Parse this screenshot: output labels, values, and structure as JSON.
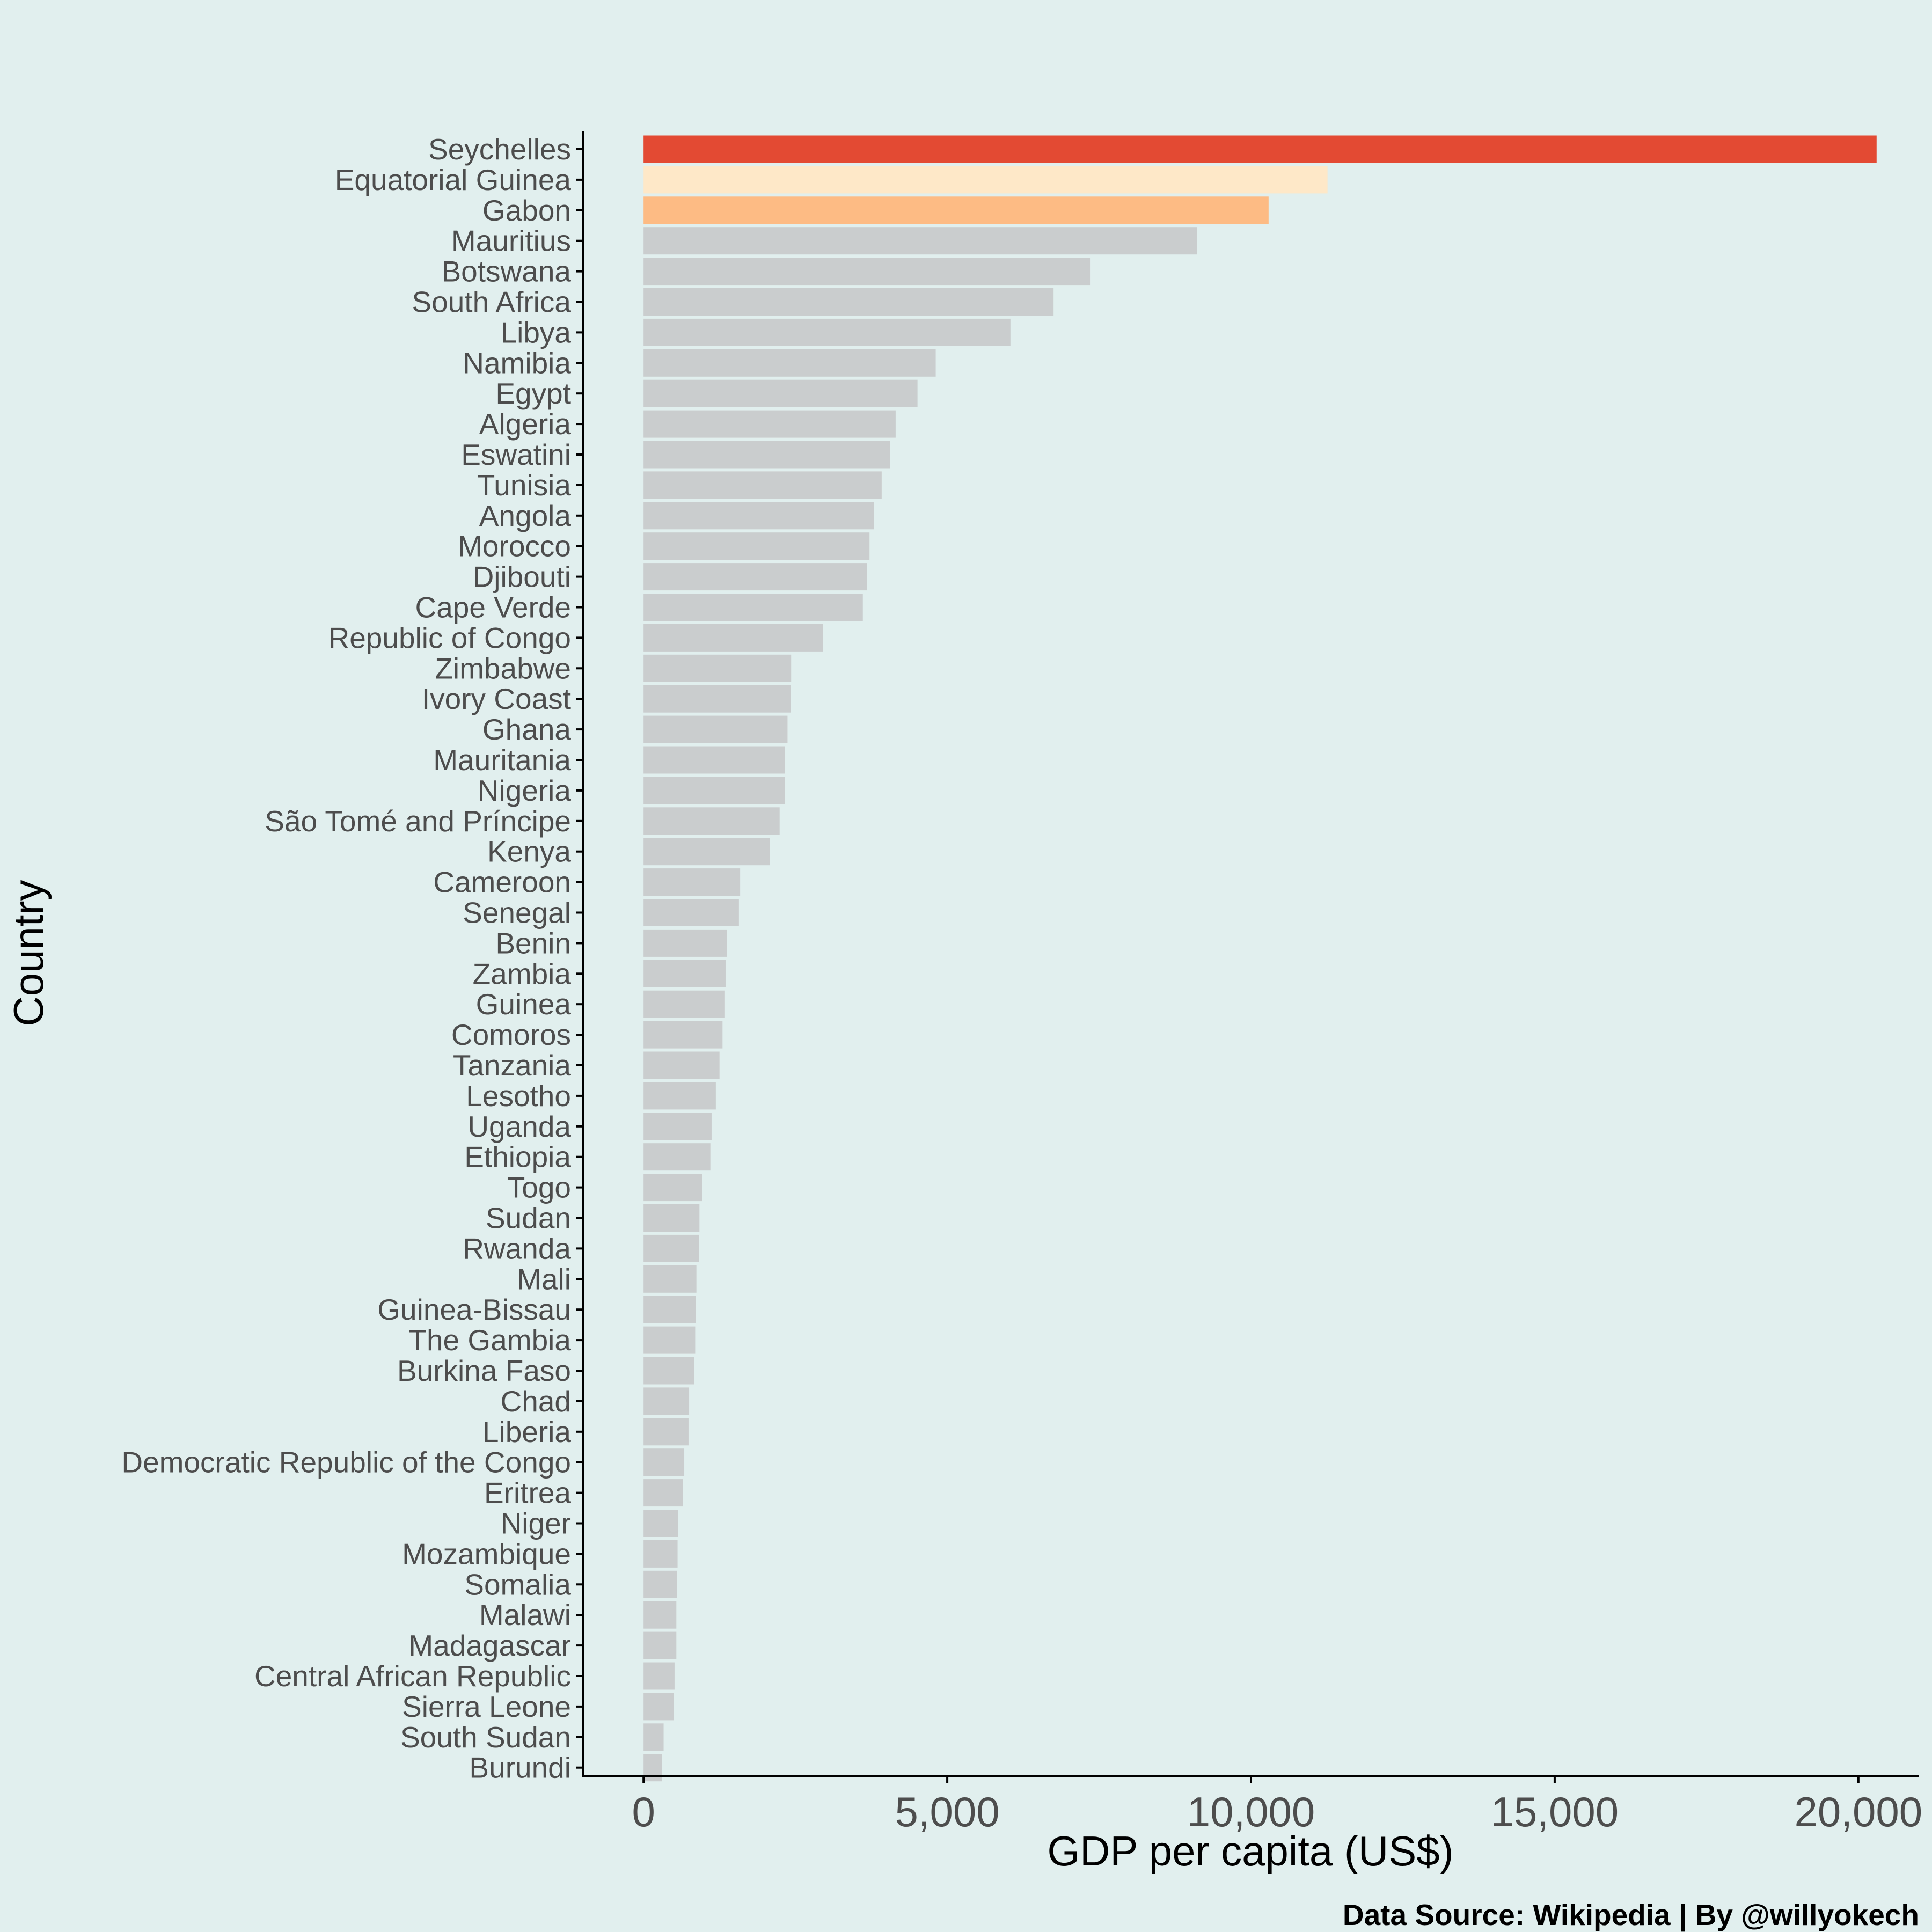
{
  "chart_data": {
    "type": "bar",
    "orientation": "horizontal",
    "title": "",
    "xlabel": "GDP per capita (US$)",
    "ylabel": "Country",
    "xlim": [
      -1000,
      21000
    ],
    "xticks": [
      0,
      5000,
      10000,
      15000,
      20000
    ],
    "xtick_labels": [
      "0",
      "5,000",
      "10,000",
      "15,000",
      "20,000"
    ],
    "grid": false,
    "categories": [
      "Seychelles",
      "Equatorial Guinea",
      "Gabon",
      "Mauritius",
      "Botswana",
      "South Africa",
      "Libya",
      "Namibia",
      "Egypt",
      "Algeria",
      "Eswatini",
      "Tunisia",
      "Angola",
      "Morocco",
      "Djibouti",
      "Cape Verde",
      "Republic of Congo",
      "Zimbabwe",
      "Ivory Coast",
      "Ghana",
      "Mauritania",
      "Nigeria",
      "São Tomé and Príncipe",
      "Kenya",
      "Cameroon",
      "Senegal",
      "Benin",
      "Zambia",
      "Guinea",
      "Comoros",
      "Tanzania",
      "Lesotho",
      "Uganda",
      "Ethiopia",
      "Togo",
      "Sudan",
      "Rwanda",
      "Mali",
      "Guinea-Bissau",
      "The Gambia",
      "Burkina Faso",
      "Chad",
      "Liberia",
      "Democratic Republic of the Congo",
      "Eritrea",
      "Niger",
      "Mozambique",
      "Somalia",
      "Malawi",
      "Madagascar",
      "Central African Republic",
      "Sierra Leone",
      "South Sudan",
      "Burundi"
    ],
    "values": [
      20300,
      11260,
      10290,
      9110,
      7350,
      6750,
      6040,
      4810,
      4510,
      4150,
      4060,
      3920,
      3790,
      3720,
      3680,
      3610,
      2950,
      2430,
      2420,
      2370,
      2330,
      2330,
      2240,
      2080,
      1590,
      1570,
      1370,
      1350,
      1340,
      1300,
      1250,
      1190,
      1120,
      1100,
      970,
      920,
      910,
      870,
      860,
      850,
      830,
      750,
      740,
      670,
      650,
      570,
      560,
      550,
      540,
      540,
      510,
      500,
      330,
      300
    ],
    "colors": {
      "highlight_1": "#e34a33",
      "highlight_2": "#fee8c8",
      "highlight_3": "#fdbb84",
      "default": "#cacdce",
      "background": "#e1efee",
      "axis": "#000000"
    }
  },
  "caption": "Data Source: Wikipedia | By @willyokech"
}
